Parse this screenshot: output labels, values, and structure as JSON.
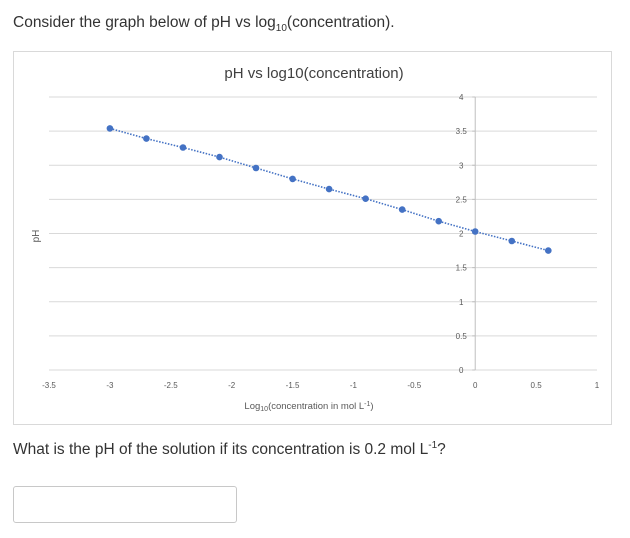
{
  "intro": {
    "prefix": "Consider the graph below of pH vs log",
    "sub": "10",
    "suffix": "(concentration)."
  },
  "question": {
    "prefix": "What is the pH of the solution if its concentration is 0.2 mol L",
    "sup": "-1",
    "suffix": "?"
  },
  "answer": {
    "value": "",
    "placeholder": ""
  },
  "chart_data": {
    "type": "scatter",
    "title": "pH vs log10(concentration)",
    "xlabel_prefix": "Log",
    "xlabel_sub": "10",
    "xlabel_main": "(concentration in mol L",
    "xlabel_sup": "-1",
    "xlabel_end": ")",
    "ylabel": "pH",
    "xlim": [
      -3.5,
      1
    ],
    "ylim": [
      0,
      4
    ],
    "x_ticks": [
      "-3.5",
      "-3",
      "-2.5",
      "-2",
      "-1.5",
      "-1",
      "-0.5",
      "0",
      "0.5",
      "1"
    ],
    "y_ticks": [
      "0",
      "0.5",
      "1",
      "1.5",
      "2",
      "2.5",
      "3",
      "3.5",
      "4"
    ],
    "grid": true,
    "legend": false,
    "marker_color": "#4472c4",
    "trendline": "dotted",
    "x": [
      -3.0,
      -2.7,
      -2.4,
      -2.1,
      -1.8,
      -1.5,
      -1.2,
      -0.9,
      -0.6,
      -0.3,
      0.0,
      0.3,
      0.6
    ],
    "y": [
      3.54,
      3.39,
      3.26,
      3.12,
      2.96,
      2.8,
      2.65,
      2.51,
      2.35,
      2.18,
      2.03,
      1.89,
      1.75
    ]
  }
}
